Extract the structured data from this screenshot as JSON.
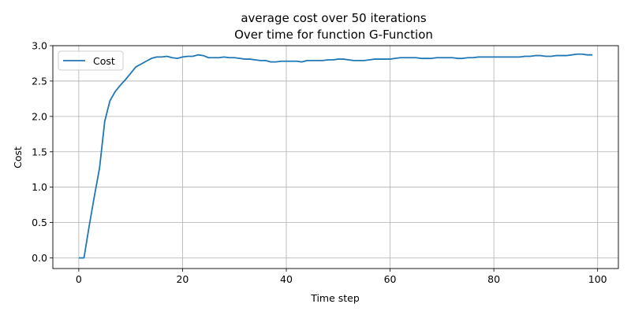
{
  "chart_data": {
    "type": "line",
    "title": "average cost over 50 iterations",
    "subtitle": "Over time for function G-Function",
    "xlabel": "Time step",
    "ylabel": "Cost",
    "xlim": [
      -5,
      104
    ],
    "ylim": [
      -0.15,
      3.0
    ],
    "xticks": [
      0,
      20,
      40,
      60,
      80,
      100
    ],
    "yticks": [
      0.0,
      0.5,
      1.0,
      1.5,
      2.0,
      2.5,
      3.0
    ],
    "xtick_labels": [
      "0",
      "20",
      "40",
      "60",
      "80",
      "100"
    ],
    "ytick_labels": [
      "0.0",
      "0.5",
      "1.0",
      "1.5",
      "2.0",
      "2.5",
      "3.0"
    ],
    "grid": true,
    "legend": "top-left",
    "series": [
      {
        "name": "Cost",
        "color": "#1f77b4",
        "x": [
          0,
          1,
          2,
          3,
          4,
          5,
          6,
          7,
          8,
          9,
          10,
          11,
          12,
          13,
          14,
          15,
          16,
          17,
          18,
          19,
          20,
          21,
          22,
          23,
          24,
          25,
          26,
          27,
          28,
          29,
          30,
          31,
          32,
          33,
          34,
          35,
          36,
          37,
          38,
          39,
          40,
          41,
          42,
          43,
          44,
          45,
          46,
          47,
          48,
          49,
          50,
          51,
          52,
          53,
          54,
          55,
          56,
          57,
          58,
          59,
          60,
          61,
          62,
          63,
          64,
          65,
          66,
          67,
          68,
          69,
          70,
          71,
          72,
          73,
          74,
          75,
          76,
          77,
          78,
          79,
          80,
          81,
          82,
          83,
          84,
          85,
          86,
          87,
          88,
          89,
          90,
          91,
          92,
          93,
          94,
          95,
          96,
          97,
          98,
          99
        ],
        "values": [
          0.0,
          0.0,
          0.45,
          0.87,
          1.27,
          1.93,
          2.22,
          2.35,
          2.44,
          2.52,
          2.61,
          2.7,
          2.74,
          2.78,
          2.82,
          2.84,
          2.84,
          2.85,
          2.83,
          2.82,
          2.84,
          2.85,
          2.85,
          2.87,
          2.86,
          2.83,
          2.83,
          2.83,
          2.84,
          2.83,
          2.83,
          2.82,
          2.81,
          2.81,
          2.8,
          2.79,
          2.79,
          2.77,
          2.77,
          2.78,
          2.78,
          2.78,
          2.78,
          2.77,
          2.79,
          2.79,
          2.79,
          2.79,
          2.8,
          2.8,
          2.81,
          2.81,
          2.8,
          2.79,
          2.79,
          2.79,
          2.8,
          2.81,
          2.81,
          2.81,
          2.81,
          2.82,
          2.83,
          2.83,
          2.83,
          2.83,
          2.82,
          2.82,
          2.82,
          2.83,
          2.83,
          2.83,
          2.83,
          2.82,
          2.82,
          2.83,
          2.83,
          2.84,
          2.84,
          2.84,
          2.84,
          2.84,
          2.84,
          2.84,
          2.84,
          2.84,
          2.85,
          2.85,
          2.86,
          2.86,
          2.85,
          2.85,
          2.86,
          2.86,
          2.86,
          2.87,
          2.88,
          2.88,
          2.87,
          2.87
        ]
      }
    ]
  }
}
